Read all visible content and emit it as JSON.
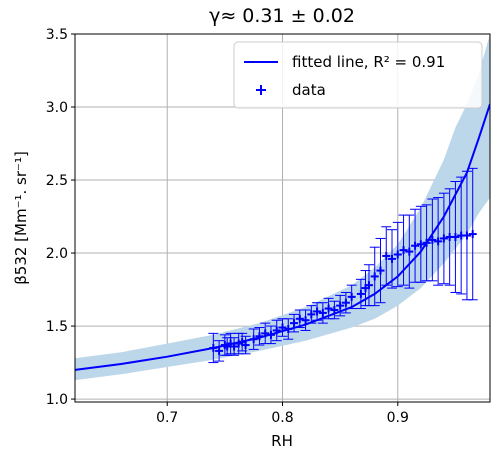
{
  "chart_data": {
    "type": "scatter",
    "title": "γ≈ 0.31 ± 0.02",
    "xlabel": "RH",
    "ylabel": "β532 [Mm⁻¹. sr⁻¹]",
    "xlim": [
      0.62,
      0.98
    ],
    "ylim": [
      0.98,
      3.5
    ],
    "xticks": [
      "0.7",
      "0.8",
      "0.9"
    ],
    "yticks": [
      "1.0",
      "1.5",
      "2.0",
      "2.5",
      "3.0",
      "3.5"
    ],
    "grid": true,
    "legend_position": "top-right",
    "legend": [
      {
        "label": "fitted line, R² = 0.91",
        "style": "line"
      },
      {
        "label": "data",
        "style": "marker"
      }
    ],
    "colors": {
      "series": "#0000ff",
      "band": "#bcd6ea",
      "grid": "#b0b0b0"
    },
    "fit": {
      "name": "fitted line, R² = 0.91",
      "x": [
        0.62,
        0.66,
        0.7,
        0.74,
        0.78,
        0.82,
        0.86,
        0.88,
        0.9,
        0.92,
        0.94,
        0.95,
        0.96,
        0.97,
        0.98
      ],
      "y": [
        1.2,
        1.24,
        1.29,
        1.35,
        1.42,
        1.51,
        1.63,
        1.72,
        1.84,
        2.01,
        2.25,
        2.4,
        2.55,
        2.78,
        3.02
      ],
      "band_lower": [
        1.13,
        1.17,
        1.22,
        1.27,
        1.33,
        1.4,
        1.49,
        1.55,
        1.64,
        1.76,
        1.93,
        2.03,
        2.13,
        2.27,
        2.38
      ],
      "band_upper": [
        1.28,
        1.32,
        1.38,
        1.44,
        1.52,
        1.63,
        1.78,
        1.9,
        2.06,
        2.31,
        2.64,
        2.86,
        3.02,
        3.22,
        3.5
      ]
    },
    "data": {
      "name": "data",
      "x": [
        0.74,
        0.745,
        0.75,
        0.752,
        0.755,
        0.758,
        0.762,
        0.765,
        0.768,
        0.775,
        0.78,
        0.785,
        0.79,
        0.795,
        0.8,
        0.805,
        0.81,
        0.815,
        0.82,
        0.825,
        0.83,
        0.835,
        0.84,
        0.845,
        0.85,
        0.855,
        0.86,
        0.868,
        0.872,
        0.875,
        0.88,
        0.885,
        0.89,
        0.895,
        0.9,
        0.905,
        0.91,
        0.915,
        0.92,
        0.925,
        0.93,
        0.935,
        0.94,
        0.945,
        0.95,
        0.955,
        0.96,
        0.965
      ],
      "y": [
        1.35,
        1.33,
        1.37,
        1.36,
        1.38,
        1.36,
        1.38,
        1.39,
        1.37,
        1.41,
        1.43,
        1.45,
        1.44,
        1.47,
        1.49,
        1.48,
        1.52,
        1.55,
        1.54,
        1.58,
        1.6,
        1.59,
        1.62,
        1.61,
        1.64,
        1.66,
        1.7,
        1.72,
        1.76,
        1.78,
        1.84,
        1.88,
        1.98,
        1.96,
        1.99,
        2.02,
        2.01,
        2.05,
        2.06,
        2.07,
        2.09,
        2.08,
        2.1,
        2.11,
        2.11,
        2.12,
        2.12,
        2.13
      ],
      "err": [
        0.1,
        0.07,
        0.07,
        0.06,
        0.07,
        0.06,
        0.07,
        0.06,
        0.06,
        0.07,
        0.06,
        0.07,
        0.06,
        0.07,
        0.06,
        0.07,
        0.06,
        0.06,
        0.07,
        0.06,
        0.06,
        0.07,
        0.07,
        0.06,
        0.07,
        0.07,
        0.08,
        0.1,
        0.12,
        0.14,
        0.2,
        0.22,
        0.2,
        0.2,
        0.22,
        0.24,
        0.25,
        0.25,
        0.26,
        0.26,
        0.28,
        0.3,
        0.31,
        0.33,
        0.38,
        0.4,
        0.44,
        0.45
      ]
    }
  }
}
